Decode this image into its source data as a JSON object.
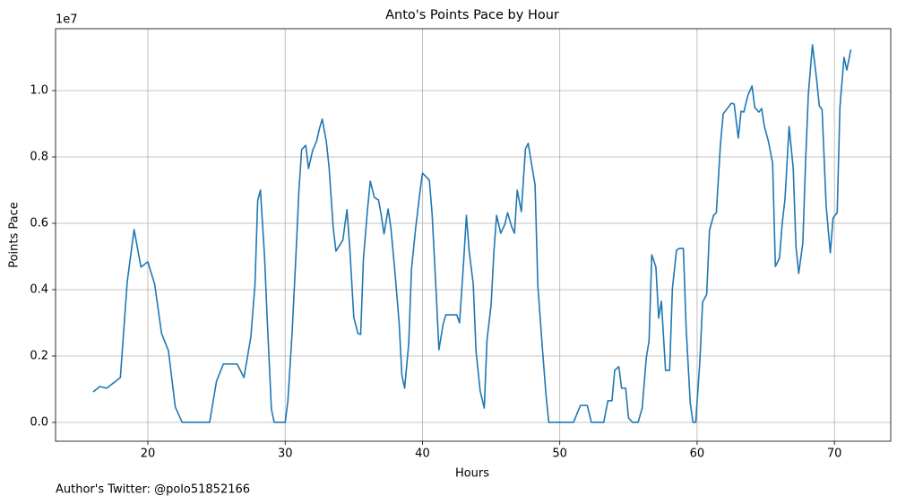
{
  "chart_data": {
    "type": "line",
    "title": "Anto's Points Pace by Hour",
    "xlabel": "Hours",
    "ylabel": "Points Pace",
    "y_offset_text": "1e7",
    "color": "#1f77b4",
    "grid": true,
    "xlim": [
      13.28,
      74.1
    ],
    "ylim": [
      -0.0568,
      1.1865
    ],
    "xticks": [
      20,
      30,
      40,
      50,
      60,
      70
    ],
    "yticks": [
      {
        "value": 0,
        "label": "0.0"
      },
      0.2,
      0.4,
      0.6,
      0.8,
      {
        "value": 1,
        "label": "1.0"
      }
    ],
    "x": [
      16.02,
      16.5,
      17.0,
      18.0,
      18.5,
      19.0,
      19.5,
      20.0,
      20.5,
      21.0,
      21.5,
      22.0,
      22.5,
      24.5,
      25.0,
      25.5,
      26.5,
      27.0,
      27.5,
      27.8,
      28.0,
      28.2,
      28.5,
      28.7,
      29.0,
      29.2,
      30.0,
      30.2,
      30.5,
      30.8,
      31.0,
      31.2,
      31.5,
      31.7,
      32.0,
      32.3,
      32.5,
      32.7,
      33.0,
      33.2,
      33.5,
      33.7,
      34.2,
      34.5,
      34.7,
      35.0,
      35.3,
      35.5,
      35.7,
      36.0,
      36.2,
      36.5,
      36.8,
      37.0,
      37.2,
      37.5,
      37.7,
      38.0,
      38.3,
      38.5,
      38.7,
      39.0,
      39.2,
      39.5,
      39.8,
      40.0,
      40.2,
      40.5,
      40.7,
      41.0,
      41.2,
      41.5,
      41.7,
      42.2,
      42.5,
      42.7,
      43.0,
      43.2,
      43.4,
      43.7,
      43.9,
      44.2,
      44.5,
      44.7,
      45.0,
      45.2,
      45.4,
      45.7,
      46.0,
      46.2,
      46.5,
      46.7,
      46.9,
      47.2,
      47.5,
      47.7,
      48.0,
      48.2,
      48.4,
      48.7,
      49.0,
      49.2,
      51.0,
      51.5,
      52.0,
      52.3,
      53.2,
      53.5,
      53.8,
      54.0,
      54.3,
      54.5,
      54.8,
      55.0,
      55.3,
      55.7,
      56.0,
      56.3,
      56.5,
      56.7,
      57.0,
      57.2,
      57.4,
      57.7,
      58.0,
      58.2,
      58.5,
      58.7,
      59.0,
      59.2,
      59.5,
      59.7,
      59.9,
      60.2,
      60.4,
      60.7,
      60.9,
      61.2,
      61.4,
      61.7,
      61.9,
      62.2,
      62.5,
      62.7,
      63.0,
      63.2,
      63.4,
      63.7,
      64.0,
      64.2,
      64.5,
      64.7,
      64.9,
      65.2,
      65.5,
      65.7,
      66.0,
      66.2,
      66.4,
      66.7,
      67.0,
      67.2,
      67.4,
      67.7,
      67.9,
      68.1,
      68.4,
      68.7,
      68.9,
      69.1,
      69.4,
      69.7,
      69.9,
      70.2,
      70.4,
      70.7,
      70.9,
      71.2
    ],
    "values": [
      0.092,
      0.108,
      0.103,
      0.135,
      0.424,
      0.581,
      0.468,
      0.484,
      0.416,
      0.268,
      0.216,
      0.046,
      0,
      0,
      0.124,
      0.176,
      0.176,
      0.135,
      0.257,
      0.414,
      0.668,
      0.7,
      0.5,
      0.305,
      0.04,
      0,
      0,
      0.065,
      0.265,
      0.516,
      0.697,
      0.822,
      0.835,
      0.765,
      0.819,
      0.849,
      0.886,
      0.914,
      0.846,
      0.768,
      0.586,
      0.516,
      0.549,
      0.641,
      0.53,
      0.316,
      0.268,
      0.265,
      0.492,
      0.643,
      0.727,
      0.678,
      0.67,
      0.624,
      0.568,
      0.643,
      0.586,
      0.451,
      0.3,
      0.143,
      0.103,
      0.238,
      0.462,
      0.584,
      0.689,
      0.751,
      0.743,
      0.73,
      0.63,
      0.389,
      0.219,
      0.295,
      0.324,
      0.324,
      0.324,
      0.3,
      0.486,
      0.624,
      0.516,
      0.416,
      0.214,
      0.095,
      0.043,
      0.249,
      0.354,
      0.514,
      0.624,
      0.57,
      0.597,
      0.632,
      0.589,
      0.57,
      0.7,
      0.635,
      0.824,
      0.841,
      0.765,
      0.716,
      0.414,
      0.241,
      0.081,
      0,
      0,
      0.051,
      0.051,
      0,
      0,
      0.065,
      0.065,
      0.157,
      0.168,
      0.103,
      0.103,
      0.014,
      0,
      0,
      0.043,
      0.195,
      0.246,
      0.505,
      0.468,
      0.314,
      0.365,
      0.157,
      0.157,
      0.403,
      0.519,
      0.524,
      0.524,
      0.286,
      0.059,
      0,
      0,
      0.184,
      0.362,
      0.386,
      0.578,
      0.624,
      0.632,
      0.838,
      0.93,
      0.946,
      0.962,
      0.959,
      0.857,
      0.938,
      0.935,
      0.986,
      1.014,
      0.949,
      0.935,
      0.946,
      0.892,
      0.846,
      0.781,
      0.47,
      0.495,
      0.6,
      0.673,
      0.892,
      0.765,
      0.53,
      0.449,
      0.541,
      0.786,
      0.989,
      1.138,
      1.035,
      0.954,
      0.943,
      0.651,
      0.511,
      0.616,
      0.632,
      0.949,
      1.1,
      1.062,
      1.124
    ]
  },
  "footer": "Author's Twitter: @polo51852166"
}
